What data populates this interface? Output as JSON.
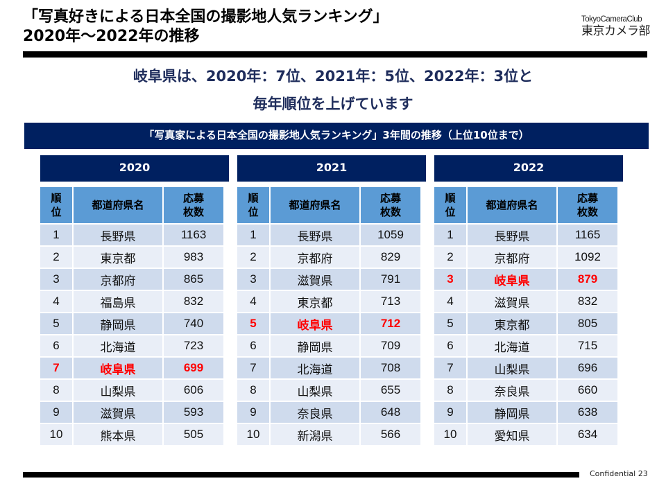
{
  "title": {
    "line1": "「写真好きによる日本全国の撮影地人気ランキング」",
    "line2": "2020年～2022年の推移"
  },
  "logo": {
    "en": "TokyoCameraClub",
    "jp": "東京カメラ部"
  },
  "headline": {
    "line1": "岐阜県は、2020年：7位、2021年：5位、2022年：3位と",
    "line2": "毎年順位を上げています"
  },
  "banner": "「写真家による日本全国の撮影地人気ランキング」3年間の推移（上位10位まで）",
  "columns": {
    "rank": "順\n位",
    "rank_l1": "順",
    "rank_l2": "位",
    "pref": "都道府県名",
    "count_l1": "応募",
    "count_l2": "枚数"
  },
  "highlight_color": "#ff0000",
  "tables": [
    {
      "year": "2020",
      "rows": [
        {
          "rank": "1",
          "pref": "長野県",
          "count": "1163"
        },
        {
          "rank": "2",
          "pref": "東京都",
          "count": "983"
        },
        {
          "rank": "3",
          "pref": "京都府",
          "count": "865"
        },
        {
          "rank": "4",
          "pref": "福島県",
          "count": "832"
        },
        {
          "rank": "5",
          "pref": "静岡県",
          "count": "740"
        },
        {
          "rank": "6",
          "pref": "北海道",
          "count": "723"
        },
        {
          "rank": "7",
          "pref": "岐阜県",
          "count": "699",
          "highlight": true
        },
        {
          "rank": "8",
          "pref": "山梨県",
          "count": "606"
        },
        {
          "rank": "9",
          "pref": "滋賀県",
          "count": "593"
        },
        {
          "rank": "10",
          "pref": "熊本県",
          "count": "505"
        }
      ]
    },
    {
      "year": "2021",
      "rows": [
        {
          "rank": "1",
          "pref": "長野県",
          "count": "1059"
        },
        {
          "rank": "2",
          "pref": "京都府",
          "count": "829"
        },
        {
          "rank": "3",
          "pref": "滋賀県",
          "count": "791"
        },
        {
          "rank": "4",
          "pref": "東京都",
          "count": "713"
        },
        {
          "rank": "5",
          "pref": "岐阜県",
          "count": "712",
          "highlight": true
        },
        {
          "rank": "6",
          "pref": "静岡県",
          "count": "709"
        },
        {
          "rank": "7",
          "pref": "北海道",
          "count": "708"
        },
        {
          "rank": "8",
          "pref": "山梨県",
          "count": "655"
        },
        {
          "rank": "9",
          "pref": "奈良県",
          "count": "648"
        },
        {
          "rank": "10",
          "pref": "新潟県",
          "count": "566"
        }
      ]
    },
    {
      "year": "2022",
      "rows": [
        {
          "rank": "1",
          "pref": "長野県",
          "count": "1165"
        },
        {
          "rank": "2",
          "pref": "京都府",
          "count": "1092"
        },
        {
          "rank": "3",
          "pref": "岐阜県",
          "count": "879",
          "highlight": true
        },
        {
          "rank": "4",
          "pref": "滋賀県",
          "count": "832"
        },
        {
          "rank": "5",
          "pref": "東京都",
          "count": "805"
        },
        {
          "rank": "6",
          "pref": "北海道",
          "count": "715"
        },
        {
          "rank": "7",
          "pref": "山梨県",
          "count": "696"
        },
        {
          "rank": "8",
          "pref": "奈良県",
          "count": "660"
        },
        {
          "rank": "9",
          "pref": "静岡県",
          "count": "638"
        },
        {
          "rank": "10",
          "pref": "愛知県",
          "count": "634"
        }
      ]
    }
  ],
  "footer": {
    "label": "Confidential",
    "page": "23"
  }
}
